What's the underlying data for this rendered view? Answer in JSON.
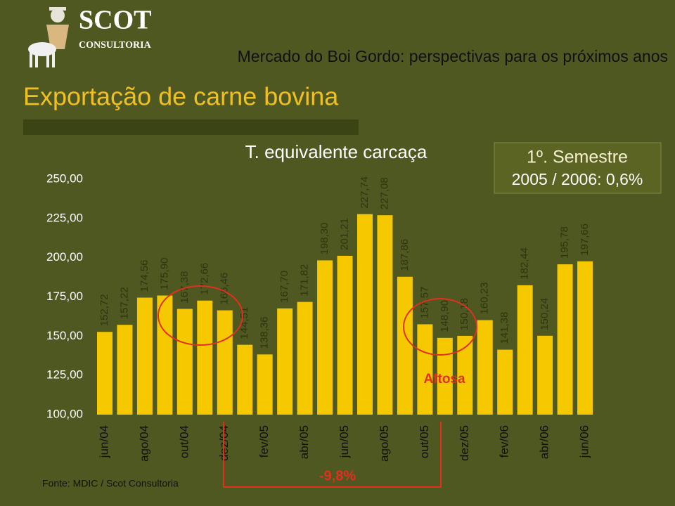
{
  "logo": {
    "name": "SCOT",
    "tagline": "CONSULTORIA"
  },
  "header": {
    "subtitle": "Mercado do Boi Gordo: perspectivas para os próximos anos",
    "title": "Exportação de carne bovina"
  },
  "source": "Fonte: MDIC / Scot Consultoria",
  "chart_data": {
    "type": "bar",
    "title": "T. equivalente carcaça",
    "categories": [
      "jun/04",
      null,
      "ago/04",
      null,
      "out/04",
      null,
      "dez/04",
      null,
      "fev/05",
      null,
      "abr/05",
      null,
      "jun/05",
      null,
      "ago/05",
      null,
      "out/05",
      null,
      "dez/05",
      null,
      "fev/06",
      null,
      "abr/06",
      null,
      "jun/06"
    ],
    "values": [
      152.72,
      157.22,
      174.56,
      175.9,
      167.38,
      172.66,
      166.46,
      144.51,
      138.36,
      167.7,
      171.82,
      198.3,
      201.21,
      227.74,
      227.08,
      187.86,
      157.57,
      148.9,
      150.18,
      160.23,
      141.38,
      182.44,
      150.24,
      195.78,
      197.66
    ],
    "value_labels": [
      "152,72",
      "157,22",
      "174,56",
      "175,90",
      "167,38",
      "172,66",
      "166,46",
      "144,51",
      "138,36",
      "167,70",
      "171,82",
      "198,30",
      "201,21",
      "227,74",
      "227,08",
      "187,86",
      "157,57",
      "148,90",
      "150,18",
      "160,23",
      "141,38",
      "182,44",
      "150,24",
      "195,78",
      "197,66"
    ],
    "color": "#f5c800",
    "ylim": [
      100,
      250
    ],
    "yticks": [
      {
        "value": 100,
        "label": "100,00"
      },
      {
        "value": 125,
        "label": "125,00"
      },
      {
        "value": 150,
        "label": "150,00"
      },
      {
        "value": 175,
        "label": "175,00"
      },
      {
        "value": 200,
        "label": "200,00"
      },
      {
        "value": 225,
        "label": "225,00"
      },
      {
        "value": 250,
        "label": "250,00"
      }
    ],
    "grid": false,
    "annotations": {
      "box_line1": "1º. Semestre",
      "box_line2": "2005 / 2006: 0,6%",
      "aftosa": "Aftosa",
      "change": "-9,8%"
    }
  }
}
